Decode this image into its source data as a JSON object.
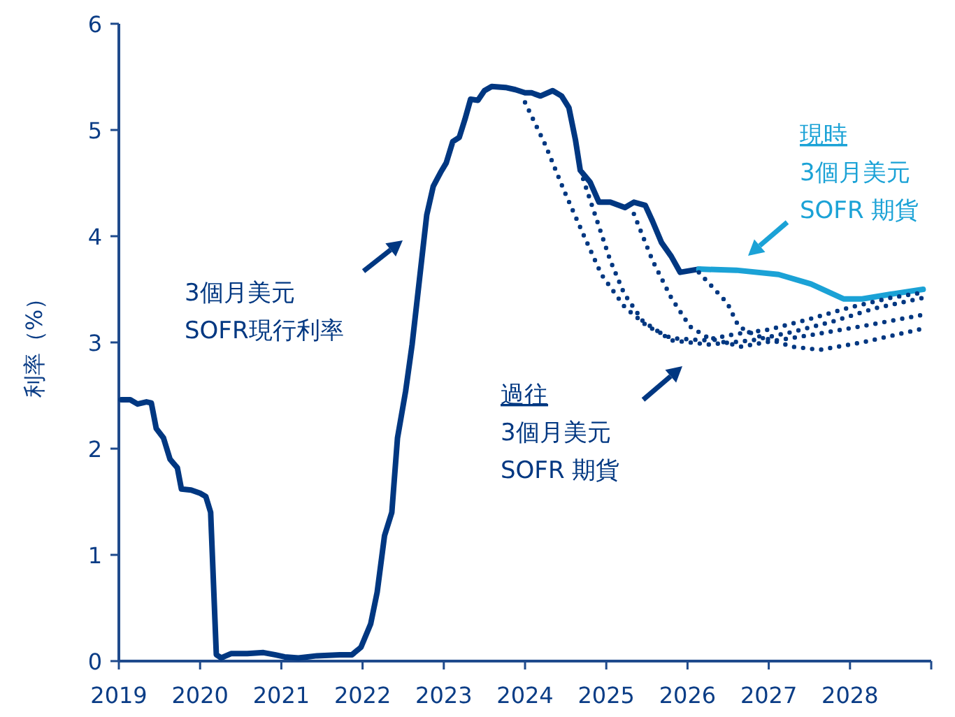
{
  "chart_data": {
    "type": "line",
    "ylabel": "利率（%）",
    "xlim": [
      2019,
      2029
    ],
    "xticks": [
      2019,
      2020,
      2021,
      2022,
      2023,
      2024,
      2025,
      2026,
      2027,
      2028,
      {
        "value": 2029,
        "label": null
      }
    ],
    "ylim": [
      0,
      6
    ],
    "yticks": [
      0,
      1,
      2,
      3,
      4,
      5,
      6
    ],
    "grid": false,
    "marker": "none",
    "series": [
      {
        "color": "#003781",
        "line_style": "solid",
        "x": [
          2019.03,
          2019.14,
          2019.23,
          2019.34,
          2019.4,
          2019.46,
          2019.55,
          2019.63,
          2019.72,
          2019.77,
          2019.89,
          2020.0,
          2020.07,
          2020.13,
          2020.2,
          2020.26,
          2020.38,
          2020.58,
          2020.78,
          2020.92,
          2021.04,
          2021.21,
          2021.44,
          2021.72,
          2021.87,
          2021.98,
          2022.1,
          2022.18,
          2022.27,
          2022.36,
          2022.43,
          2022.53,
          2022.61,
          2022.7,
          2022.79,
          2022.87,
          2022.96,
          2023.03,
          2023.11,
          2023.19,
          2023.26,
          2023.33,
          2023.42,
          2023.5,
          2023.59,
          2023.76,
          2023.88,
          2024.0,
          2024.08,
          2024.19,
          2024.34,
          2024.45,
          2024.54,
          2024.62,
          2024.68,
          2024.8,
          2024.91,
          2025.05,
          2025.23,
          2025.34,
          2025.48,
          2025.57,
          2025.68,
          2025.8,
          2025.91,
          2026.14
        ],
        "values": [
          2.46,
          2.46,
          2.42,
          2.44,
          2.43,
          2.19,
          2.1,
          1.9,
          1.82,
          1.62,
          1.61,
          1.58,
          1.55,
          1.4,
          0.06,
          0.03,
          0.07,
          0.07,
          0.08,
          0.06,
          0.04,
          0.03,
          0.05,
          0.06,
          0.06,
          0.13,
          0.35,
          0.65,
          1.18,
          1.4,
          2.1,
          2.54,
          2.98,
          3.59,
          4.2,
          4.47,
          4.6,
          4.69,
          4.89,
          4.93,
          5.1,
          5.29,
          5.28,
          5.37,
          5.41,
          5.4,
          5.38,
          5.35,
          5.35,
          5.32,
          5.37,
          5.32,
          5.21,
          4.91,
          4.62,
          4.51,
          4.32,
          4.32,
          4.27,
          4.32,
          4.29,
          4.14,
          3.94,
          3.81,
          3.66,
          3.69
        ]
      },
      {
        "color": "#1ba2d6",
        "line_style": "solid",
        "x": [
          2026.14,
          2026.6,
          2027.12,
          2027.52,
          2027.92,
          2028.15,
          2028.55,
          2028.9
        ],
        "values": [
          3.69,
          3.68,
          3.64,
          3.55,
          3.41,
          3.41,
          3.46,
          3.5
        ]
      },
      {
        "color": "#003781",
        "line_style": "dotted",
        "x": [
          2024.0,
          2024.25,
          2024.48,
          2024.71,
          2024.94,
          2025.23,
          2025.51,
          2025.8,
          2026.2,
          2026.6,
          2027.0,
          2027.5,
          2028.0,
          2028.5,
          2028.9
        ],
        "values": [
          5.26,
          4.86,
          4.43,
          4.03,
          3.64,
          3.33,
          3.15,
          3.04,
          3.02,
          3.08,
          3.12,
          3.22,
          3.33,
          3.42,
          3.47
        ]
      },
      {
        "color": "#003781",
        "line_style": "dotted",
        "x": [
          2024.68,
          2024.88,
          2025.05,
          2025.22,
          2025.45,
          2025.8,
          2026.26,
          2026.8,
          2027.3,
          2027.8,
          2028.3,
          2028.9
        ],
        "values": [
          4.62,
          4.16,
          3.77,
          3.46,
          3.2,
          3.02,
          2.98,
          3.02,
          3.1,
          3.2,
          3.32,
          3.42
        ]
      },
      {
        "color": "#003781",
        "line_style": "dotted",
        "x": [
          2025.34,
          2025.57,
          2025.8,
          2026.03,
          2026.26,
          2026.66,
          2027.1,
          2027.6,
          2028.2,
          2028.9
        ],
        "values": [
          4.21,
          3.77,
          3.42,
          3.15,
          3.04,
          2.96,
          3.02,
          3.08,
          3.16,
          3.26
        ]
      },
      {
        "color": "#003781",
        "line_style": "dotted",
        "x": [
          2026.14,
          2026.49,
          2026.63,
          2026.83,
          2027.29,
          2027.63,
          2028.15,
          2028.9
        ],
        "values": [
          3.66,
          3.37,
          3.15,
          3.07,
          2.96,
          2.93,
          3.0,
          3.13
        ]
      }
    ],
    "annotations": [
      "3個月美元\nSOFR現行利率",
      "過往\n3個月美元\nSOFR 期貨",
      "現時\n3個月美元\nSOFR 期貨"
    ]
  }
}
